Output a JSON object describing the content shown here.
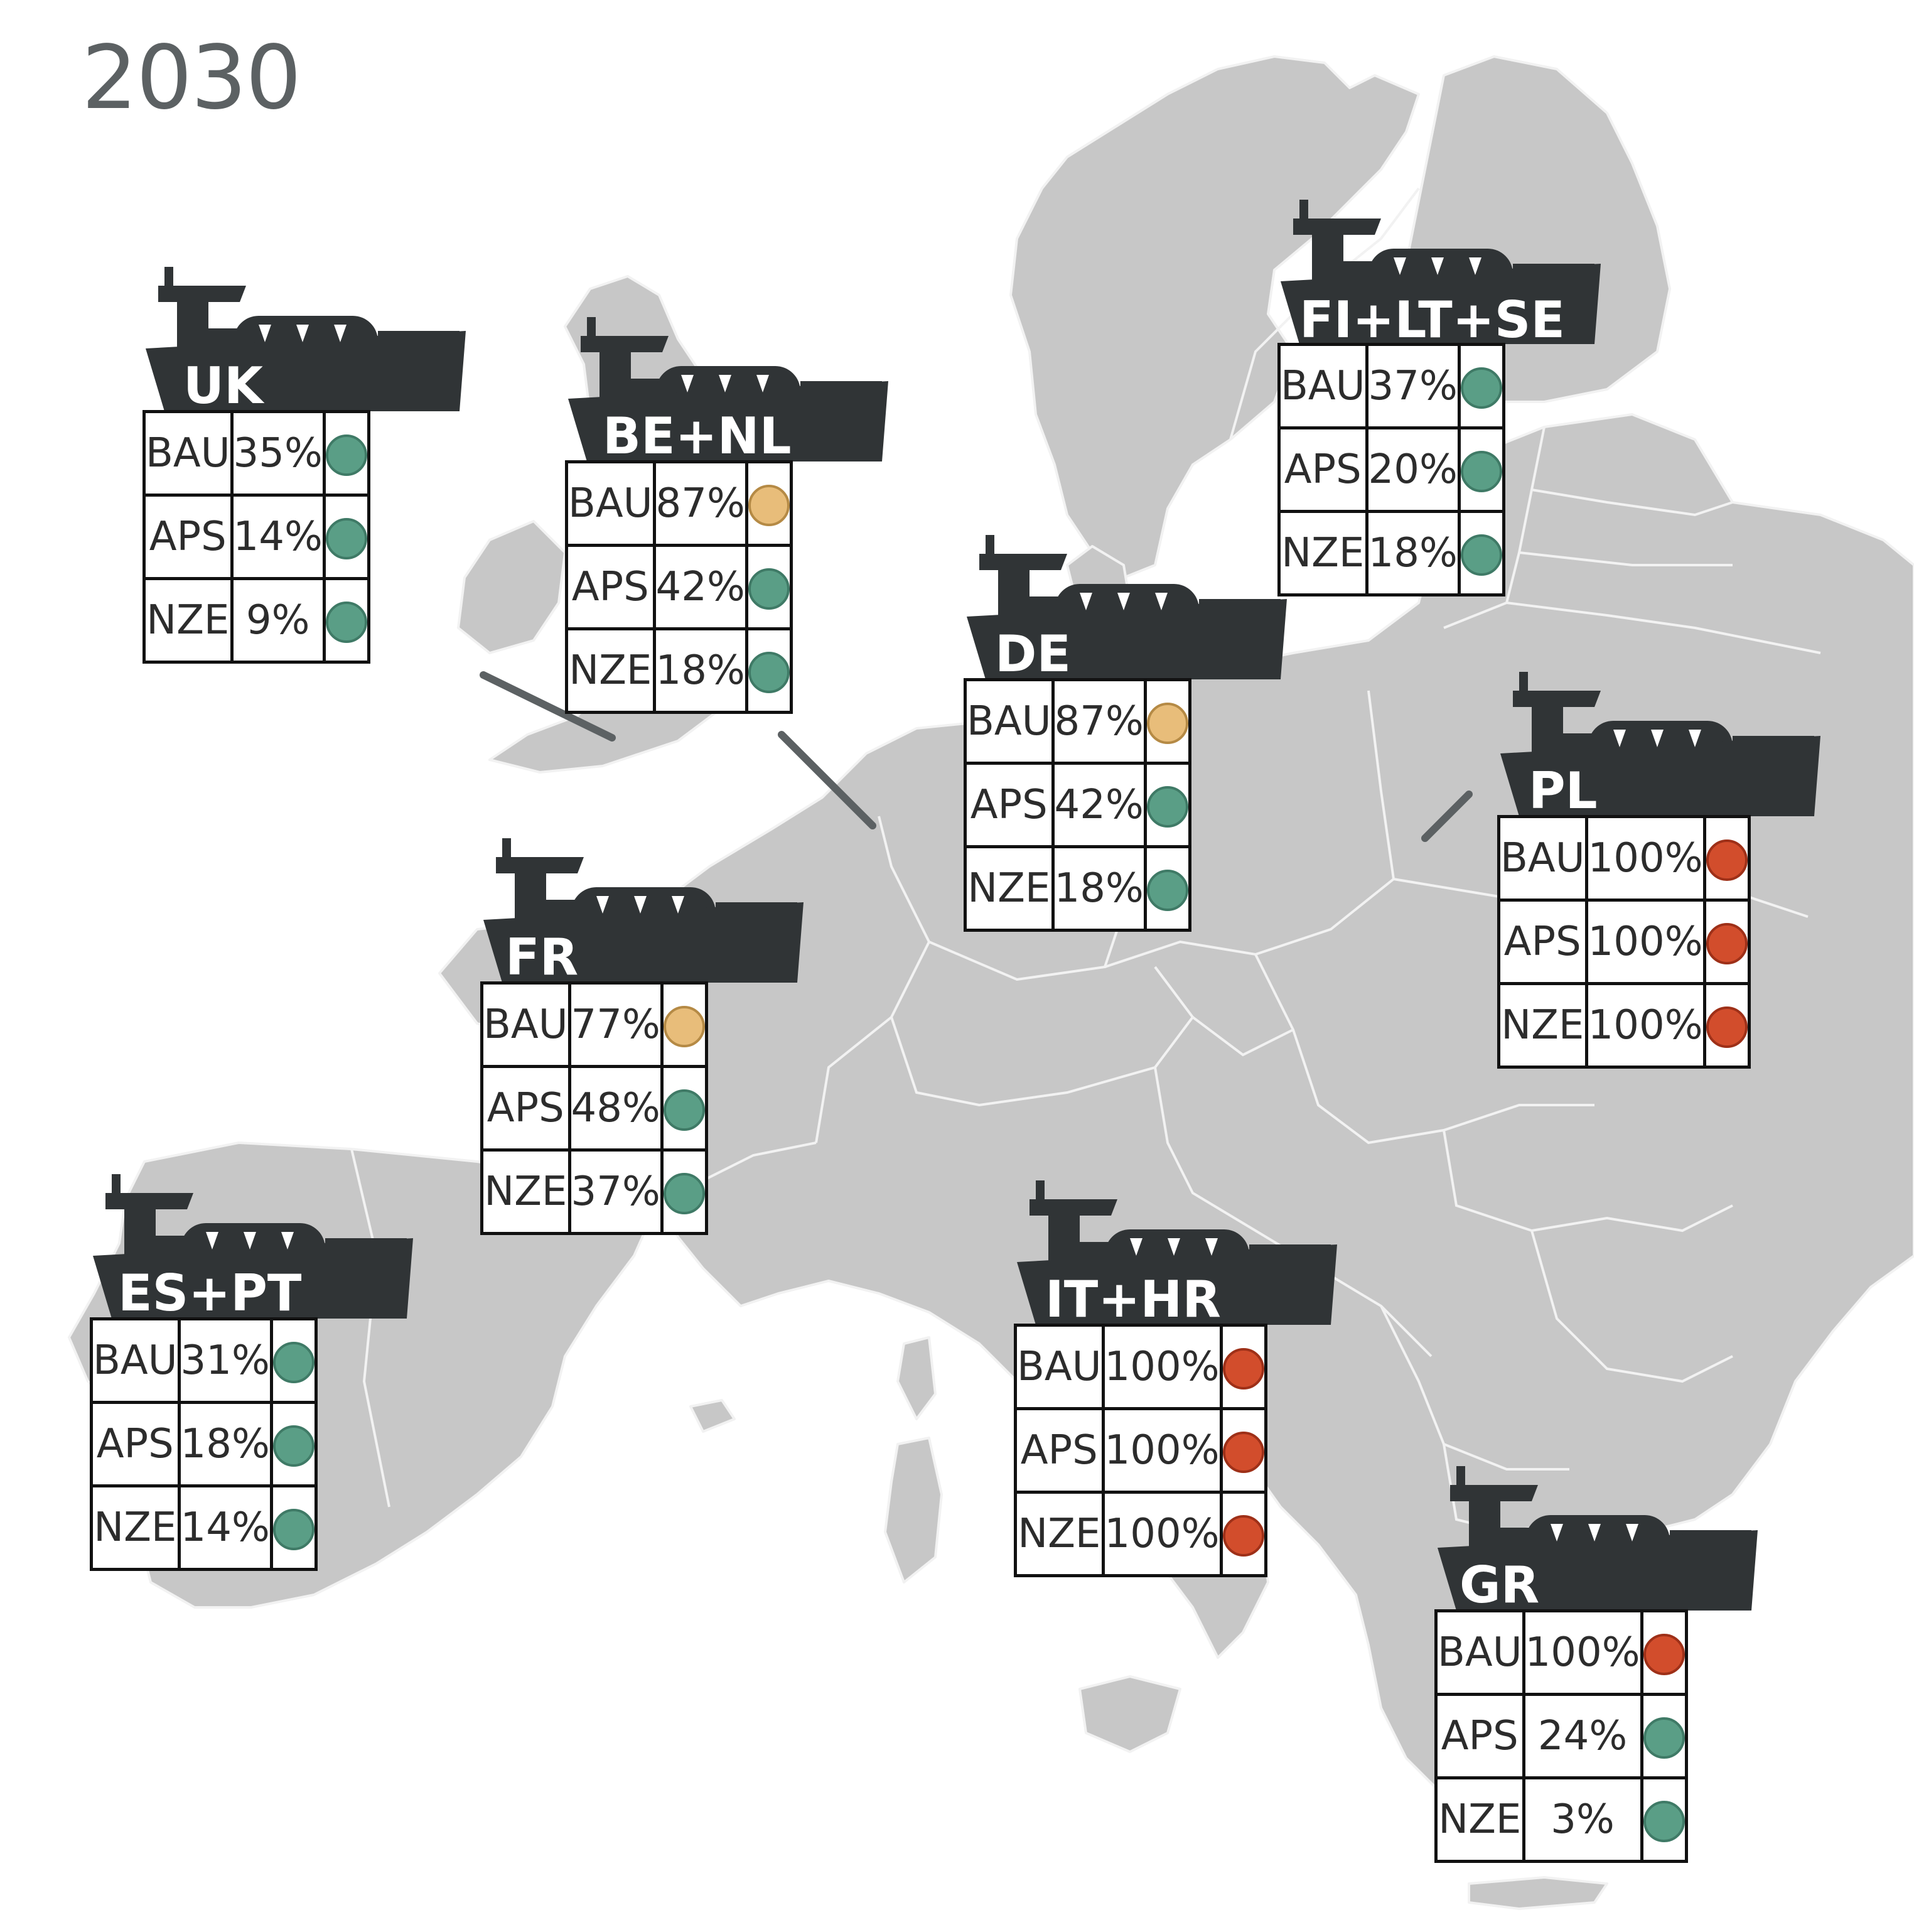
{
  "title": "2030",
  "colors": {
    "land": "#c7c7c7",
    "border": "#f2f2f2",
    "ship": "#303436",
    "leader_line": "#5c6163",
    "status": {
      "green": "#5a9e86",
      "yellow": "#e8bd7a",
      "red": "#d24d2c"
    }
  },
  "icon": "ship-icon",
  "regions": [
    {
      "name": "UK",
      "rows": [
        {
          "scenario": "BAU",
          "value": "35%",
          "status": "green"
        },
        {
          "scenario": "APS",
          "value": "14%",
          "status": "green"
        },
        {
          "scenario": "NZE",
          "value": "9%",
          "status": "green"
        }
      ]
    },
    {
      "name": "BE+NL",
      "rows": [
        {
          "scenario": "BAU",
          "value": "87%",
          "status": "yellow"
        },
        {
          "scenario": "APS",
          "value": "42%",
          "status": "green"
        },
        {
          "scenario": "NZE",
          "value": "18%",
          "status": "green"
        }
      ]
    },
    {
      "name": "FI+LT+SE",
      "rows": [
        {
          "scenario": "BAU",
          "value": "37%",
          "status": "green"
        },
        {
          "scenario": "APS",
          "value": "20%",
          "status": "green"
        },
        {
          "scenario": "NZE",
          "value": "18%",
          "status": "green"
        }
      ]
    },
    {
      "name": "DE",
      "rows": [
        {
          "scenario": "BAU",
          "value": "87%",
          "status": "yellow"
        },
        {
          "scenario": "APS",
          "value": "42%",
          "status": "green"
        },
        {
          "scenario": "NZE",
          "value": "18%",
          "status": "green"
        }
      ]
    },
    {
      "name": "PL",
      "rows": [
        {
          "scenario": "BAU",
          "value": "100%",
          "status": "red"
        },
        {
          "scenario": "APS",
          "value": "100%",
          "status": "red"
        },
        {
          "scenario": "NZE",
          "value": "100%",
          "status": "red"
        }
      ]
    },
    {
      "name": "FR",
      "rows": [
        {
          "scenario": "BAU",
          "value": "77%",
          "status": "yellow"
        },
        {
          "scenario": "APS",
          "value": "48%",
          "status": "green"
        },
        {
          "scenario": "NZE",
          "value": "37%",
          "status": "green"
        }
      ]
    },
    {
      "name": "ES+PT",
      "rows": [
        {
          "scenario": "BAU",
          "value": "31%",
          "status": "green"
        },
        {
          "scenario": "APS",
          "value": "18%",
          "status": "green"
        },
        {
          "scenario": "NZE",
          "value": "14%",
          "status": "green"
        }
      ]
    },
    {
      "name": "IT+HR",
      "rows": [
        {
          "scenario": "BAU",
          "value": "100%",
          "status": "red"
        },
        {
          "scenario": "APS",
          "value": "100%",
          "status": "red"
        },
        {
          "scenario": "NZE",
          "value": "100%",
          "status": "red"
        }
      ]
    },
    {
      "name": "GR",
      "rows": [
        {
          "scenario": "BAU",
          "value": "100%",
          "status": "red"
        },
        {
          "scenario": "APS",
          "value": "24%",
          "status": "green"
        },
        {
          "scenario": "NZE",
          "value": "3%",
          "status": "green"
        }
      ]
    }
  ]
}
